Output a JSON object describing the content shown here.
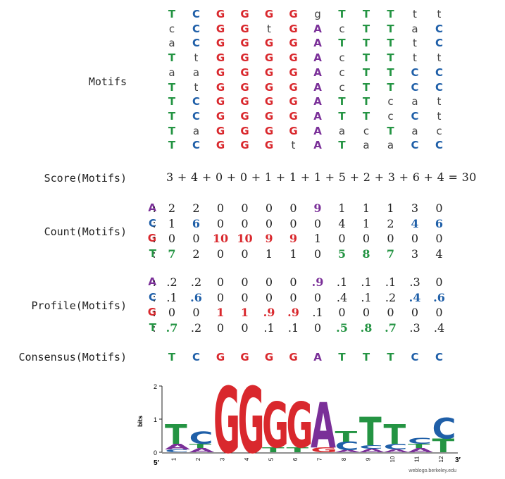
{
  "labels": {
    "motifs": "Motifs",
    "score": "Score(Motifs)",
    "count": "Count(Motifs)",
    "profile": "Profile(Motifs)",
    "consensus": "Consensus(Motifs)"
  },
  "motifs": [
    "TCGGGGgTTTtt",
    "cCGGtGAcTTaC",
    "aCGGGGATTTtC",
    "TtGGGGAcTTtt",
    "aaGGGGAcTTCC",
    "TtGGGGAcTTCC",
    "TCGGGGATTcat",
    "TCGGGGATTcCt",
    "TaGGGGAacTac",
    "TCGGGtATaaCC"
  ],
  "score": {
    "terms": [
      "3",
      "4",
      "0",
      "0",
      "1",
      "1",
      "1",
      "5",
      "2",
      "3",
      "6",
      "4"
    ],
    "total": "30"
  },
  "count": {
    "A": [
      "2",
      "2",
      "0",
      "0",
      "0",
      "0",
      "9",
      "1",
      "1",
      "1",
      "3",
      "0"
    ],
    "C": [
      "1",
      "6",
      "0",
      "0",
      "0",
      "0",
      "0",
      "4",
      "1",
      "2",
      "4",
      "6"
    ],
    "G": [
      "0",
      "0",
      "10",
      "10",
      "9",
      "9",
      "1",
      "0",
      "0",
      "0",
      "0",
      "0"
    ],
    "T": [
      "7",
      "2",
      "0",
      "0",
      "1",
      "1",
      "0",
      "5",
      "8",
      "7",
      "3",
      "4"
    ]
  },
  "profile": {
    "A": [
      ".2",
      ".2",
      "0",
      "0",
      "0",
      "0",
      ".9",
      ".1",
      ".1",
      ".1",
      ".3",
      "0"
    ],
    "C": [
      ".1",
      ".6",
      "0",
      "0",
      "0",
      "0",
      "0",
      ".4",
      ".1",
      ".2",
      ".4",
      ".6"
    ],
    "G": [
      "0",
      "0",
      "1",
      "1",
      ".9",
      ".9",
      ".1",
      "0",
      "0",
      "0",
      "0",
      "0"
    ],
    "T": [
      ".7",
      ".2",
      "0",
      "0",
      ".1",
      ".1",
      "0",
      ".5",
      ".8",
      ".7",
      ".3",
      ".4"
    ]
  },
  "highlight": {
    "count": [
      [
        3,
        0
      ],
      [
        1,
        1
      ],
      [
        2,
        2
      ],
      [
        2,
        3
      ],
      [
        2,
        4
      ],
      [
        2,
        5
      ],
      [
        0,
        6
      ],
      [
        3,
        7
      ],
      [
        3,
        8
      ],
      [
        3,
        9
      ],
      [
        1,
        10
      ],
      [
        1,
        11
      ]
    ]
  },
  "consensus": [
    "T",
    "C",
    "G",
    "G",
    "G",
    "G",
    "A",
    "T",
    "T",
    "T",
    "C",
    "C"
  ],
  "row_keys": [
    "A",
    "C",
    "G",
    "T"
  ],
  "logo": {
    "y_label": "bits",
    "y_ticks": [
      "0",
      "1",
      "2"
    ],
    "x_ticks": [
      "1",
      "2",
      "3",
      "4",
      "5",
      "6",
      "7",
      "8",
      "9",
      "10",
      "11",
      "12"
    ],
    "five_prime": "5′",
    "three_prime": "3′",
    "credit": "weblogo.berkeley.edu"
  },
  "colors": {
    "A": "#7a2f98",
    "C": "#1f5fa8",
    "G": "#d9282d",
    "T": "#249443"
  }
}
